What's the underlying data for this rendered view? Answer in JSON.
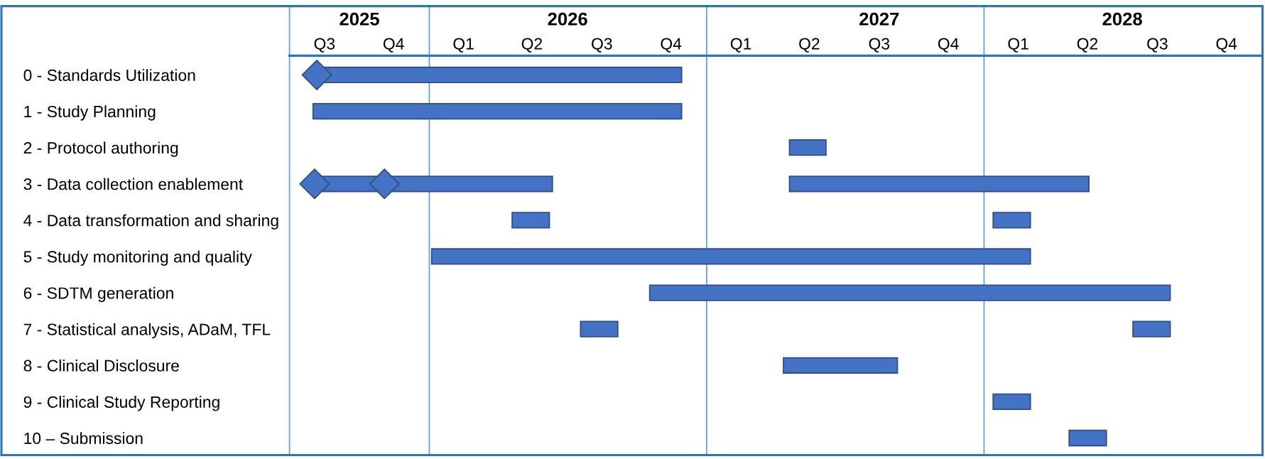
{
  "chart_data": {
    "type": "bar",
    "orientation": "horizontal",
    "categories": [
      "0 - Standards Utilization",
      "1 - Study Planning",
      "2 - Protocol authoring",
      "3 - Data collection enablement",
      "4 - Data transformation and sharing",
      "5 - Study monitoring and quality",
      "6 - SDTM generation",
      "7 - Statistical analysis, ADaM, TFL",
      "8 - Clinical Disclosure",
      "9 - Clinical Study Reporting",
      "10 – Submission"
    ],
    "series": [
      {
        "color": "#4472c4",
        "base": [
          20301,
          20301,
          20928,
          20301,
          20563,
          20457,
          20744,
          20653,
          20920,
          21196,
          21296
        ],
        "values": [
          485,
          485,
          48,
          315,
          49,
          788,
          685,
          49,
          150,
          49,
          49
        ]
      },
      {
        "color": "#4472c4",
        "base": [
          null,
          null,
          null,
          20928,
          21196,
          null,
          null,
          21380,
          null,
          null,
          null
        ],
        "values": [
          null,
          null,
          null,
          394,
          49,
          null,
          null,
          49,
          null,
          null,
          null
        ]
      },
      {
        "type": "scatter",
        "color": "#4472c4",
        "marker": "diamond",
        "values": [
          20306,
          null,
          null,
          20303,
          null,
          null,
          null,
          null,
          null,
          null,
          null
        ]
      },
      {
        "type": "scatter",
        "color": "#4472c4",
        "marker": "diamond",
        "values": [
          null,
          null,
          null,
          20395,
          null,
          null,
          null,
          null,
          null,
          null,
          null
        ]
      }
    ],
    "xlim": [
      "2025-07-01",
      "2029-01-01"
    ],
    "xticks": [
      {
        "value": "2025-08-16",
        "label": "Q3"
      },
      {
        "value": "2025-11-15",
        "label": "Q4"
      },
      {
        "value": "2026-02-15",
        "label": "Q1"
      },
      {
        "value": "2026-05-16",
        "label": "Q2"
      },
      {
        "value": "2026-08-16",
        "label": "Q3"
      },
      {
        "value": "2026-11-15",
        "label": "Q4"
      },
      {
        "value": "2027-02-15",
        "label": "Q1"
      },
      {
        "value": "2027-05-16",
        "label": "Q2"
      },
      {
        "value": "2027-08-16",
        "label": "Q3"
      },
      {
        "value": "2027-11-15",
        "label": "Q4"
      },
      {
        "value": "2028-02-15",
        "label": "Q1"
      },
      {
        "value": "2028-05-16",
        "label": "Q2"
      },
      {
        "value": "2028-08-16",
        "label": "Q3"
      },
      {
        "value": "2028-11-15",
        "label": "Q4"
      }
    ],
    "x2lim": [
      "2025-07-01",
      "2029-01-01"
    ],
    "x2ticks": [
      {
        "value": "2025-10-01",
        "label": "2025"
      },
      {
        "value": "2026-07-02",
        "label": "2026"
      },
      {
        "value": "2027-08-16",
        "label": "2027"
      },
      {
        "value": "2028-07-01",
        "label": "2028"
      }
    ],
    "ref_lines": [
      {
        "axis": "x",
        "value": "2026-01-01",
        "color": "#5b9bd5"
      },
      {
        "axis": "x",
        "value": "2027-01-01",
        "color": "#5b9bd5"
      },
      {
        "axis": "x",
        "value": "2028-01-01",
        "color": "#5b9bd5"
      }
    ],
    "grid": false
  }
}
